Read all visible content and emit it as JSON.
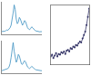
{
  "chart_data": [
    {
      "type": "line",
      "color": "#3b8fc0",
      "grid": false,
      "tick_labels": false,
      "x": [
        0,
        1,
        2,
        3,
        4,
        5,
        6,
        7,
        8,
        9,
        10,
        11,
        12,
        13,
        14,
        15,
        16,
        17,
        18,
        19,
        20,
        21,
        22,
        23,
        24,
        25,
        26,
        27,
        28,
        29,
        30,
        31,
        32,
        33,
        34,
        35,
        36,
        37,
        38,
        39
      ],
      "values": [
        0.1,
        0.1,
        0.12,
        0.11,
        0.13,
        0.15,
        0.14,
        0.18,
        0.22,
        0.3,
        0.45,
        0.7,
        0.95,
        0.8,
        0.5,
        0.35,
        0.4,
        0.55,
        0.5,
        0.38,
        0.3,
        0.35,
        0.45,
        0.42,
        0.3,
        0.22,
        0.18,
        0.16,
        0.2,
        0.25,
        0.22,
        0.17,
        0.14,
        0.12,
        0.11,
        0.1,
        0.1,
        0.09,
        0.1,
        0.09
      ],
      "xlim": [
        0,
        39
      ],
      "ylim": [
        0,
        1.05
      ]
    },
    {
      "type": "line",
      "color": "#3b8fc0",
      "grid": false,
      "tick_labels": false,
      "x": [
        0,
        1,
        2,
        3,
        4,
        5,
        6,
        7,
        8,
        9,
        10,
        11,
        12,
        13,
        14,
        15,
        16,
        17,
        18,
        19,
        20,
        21,
        22,
        23,
        24,
        25,
        26,
        27,
        28,
        29,
        30,
        31,
        32,
        33,
        34,
        35,
        36,
        37,
        38,
        39
      ],
      "values": [
        0.08,
        0.09,
        0.1,
        0.1,
        0.12,
        0.13,
        0.15,
        0.2,
        0.3,
        0.5,
        0.8,
        0.98,
        0.7,
        0.45,
        0.35,
        0.42,
        0.6,
        0.55,
        0.4,
        0.3,
        0.28,
        0.33,
        0.4,
        0.36,
        0.27,
        0.2,
        0.17,
        0.15,
        0.18,
        0.22,
        0.19,
        0.15,
        0.13,
        0.11,
        0.1,
        0.1,
        0.09,
        0.09,
        0.08,
        0.08
      ],
      "xlim": [
        0,
        39
      ],
      "ylim": [
        0,
        1.05
      ]
    },
    {
      "type": "scatter",
      "color": "#333366",
      "marker": "circle",
      "line_style": "solid",
      "grid": false,
      "tick_labels": false,
      "x": [
        0,
        1,
        2,
        3,
        4,
        5,
        6,
        7,
        8,
        9,
        10,
        11,
        12,
        13,
        14,
        15,
        16,
        17,
        18,
        19,
        20,
        21,
        22,
        23,
        24,
        25,
        26,
        27,
        28,
        29
      ],
      "values": [
        0.5,
        0.6,
        0.4,
        0.55,
        0.7,
        0.5,
        0.65,
        0.6,
        0.75,
        0.7,
        0.8,
        0.65,
        0.85,
        0.9,
        0.8,
        1.0,
        0.95,
        1.1,
        1.05,
        1.2,
        1.15,
        1.3,
        1.4,
        1.35,
        1.6,
        1.8,
        2.0,
        2.4,
        2.9,
        3.4
      ],
      "xlim": [
        0,
        29
      ],
      "ylim": [
        0,
        3.6
      ]
    }
  ]
}
